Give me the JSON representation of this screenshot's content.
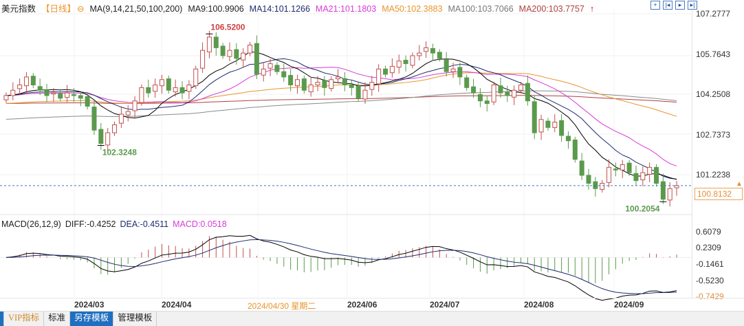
{
  "header": {
    "title": "美元指数",
    "period": "【日线】",
    "ma_label": "MA(9,14,21,50,100,200)",
    "ma9": "MA9:100.9906",
    "ma14": "MA14:101.1266",
    "ma21": "MA21:101.1803",
    "ma50": "MA50:102.3883",
    "ma100": "MA100:103.7066",
    "ma200": "MA200:103.7757"
  },
  "macd_header": {
    "label": "MACD(26,12,9)",
    "diff": "DIFF:-0.4252",
    "dea": "DEA:-0.4511",
    "macd": "MACD:0.0518"
  },
  "price_axis": [
    "107.2777",
    "105.7643",
    "104.2508",
    "102.7373",
    "101.2238"
  ],
  "current_price": "100.8132",
  "macd_axis": [
    "0.6079",
    "0.2309",
    "-0.1461",
    "-0.5230",
    "-0.7429"
  ],
  "dates": [
    "2024/03",
    "2024/04",
    "2024/04/30 星期二",
    "2024/06",
    "2024/07",
    "2024/08",
    "2024/09"
  ],
  "toolbar": [
    "VIP指标",
    "标准",
    "另存模板",
    "管理模板"
  ],
  "colors": {
    "up": "#c0504d",
    "down": "#5a9a4c",
    "ma9": "#000000",
    "ma14": "#1e2a6e",
    "ma21": "#d63bd6",
    "ma50": "#e8952a",
    "ma100": "#8a8a8a",
    "ma200": "#b04040"
  },
  "chart_data": {
    "type": "candlestick",
    "title": "美元指数 日线",
    "annotations": [
      {
        "index": 30,
        "label": "106.5200",
        "value": 106.52
      },
      {
        "index": 14,
        "label": "102.3248",
        "value": 102.3248
      },
      {
        "index": 97,
        "label": "100.2054",
        "value": 100.2054
      }
    ],
    "ylim": [
      100.0,
      107.2777
    ],
    "closes": [
      104.2,
      104.4,
      104.6,
      104.9,
      104.6,
      104.4,
      104.2,
      104.3,
      104.1,
      104.3,
      104.2,
      104.1,
      103.8,
      102.9,
      102.4,
      102.8,
      103.1,
      103.5,
      103.6,
      104.0,
      104.5,
      104.3,
      104.6,
      104.8,
      104.4,
      104.5,
      104.3,
      104.6,
      105.2,
      105.9,
      106.4,
      106.0,
      105.7,
      105.9,
      105.6,
      105.8,
      106.1,
      105.0,
      105.2,
      105.4,
      105.1,
      104.9,
      104.6,
      104.8,
      104.4,
      104.6,
      104.7,
      104.5,
      104.8,
      104.9,
      104.6,
      104.5,
      104.1,
      104.4,
      104.7,
      105.2,
      105.0,
      105.3,
      105.5,
      105.4,
      105.7,
      105.8,
      106.0,
      105.8,
      105.6,
      105.1,
      105.2,
      104.9,
      104.5,
      104.3,
      104.0,
      103.9,
      104.6,
      104.3,
      104.2,
      104.4,
      104.6,
      104.0,
      102.8,
      103.3,
      103.0,
      103.2,
      102.7,
      102.5,
      101.8,
      101.2,
      100.9,
      100.7,
      100.9,
      101.5,
      101.4,
      101.6,
      101.3,
      101.0,
      101.3,
      101.5,
      100.9,
      100.3,
      100.7,
      100.8132
    ]
  }
}
